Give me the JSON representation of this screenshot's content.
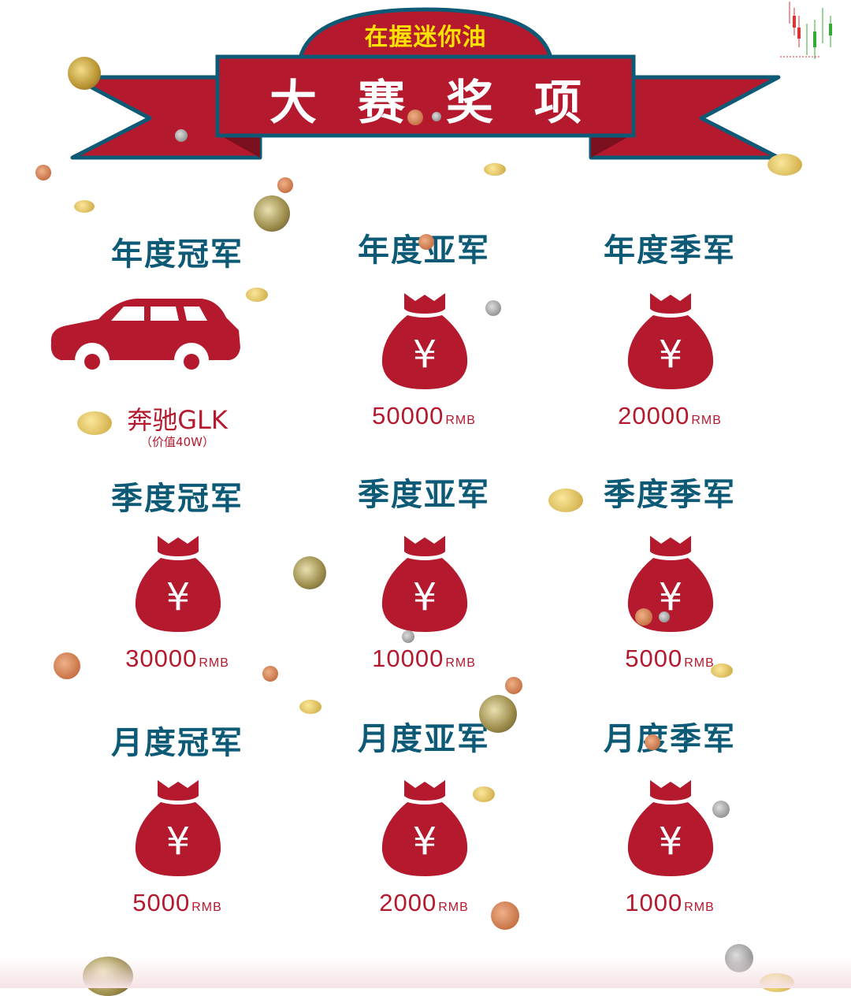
{
  "banner": {
    "subtitle": "在握迷你油",
    "title": "大赛奖项",
    "colors": {
      "ribbon": "#b5192d",
      "border": "#0d5a76",
      "subtitle": "#ffe100"
    }
  },
  "prizes": {
    "annual_champion": {
      "title": "年度冠军",
      "icon": "car-icon",
      "name": "奔驰GLK",
      "value_note": "（价值40W）"
    },
    "annual_second": {
      "title": "年度亚军",
      "icon": "money-bag-icon",
      "amount": "50000",
      "unit": "RMB"
    },
    "annual_third": {
      "title": "年度季军",
      "icon": "money-bag-icon",
      "amount": "20000",
      "unit": "RMB"
    },
    "quarter_champion": {
      "title": "季度冠军",
      "icon": "money-bag-icon",
      "amount": "30000",
      "unit": "RMB"
    },
    "quarter_second": {
      "title": "季度亚军",
      "icon": "money-bag-icon",
      "amount": "10000",
      "unit": "RMB"
    },
    "quarter_third": {
      "title": "季度季军",
      "icon": "money-bag-icon",
      "amount": "5000",
      "unit": "RMB"
    },
    "monthly_champion": {
      "title": "月度冠军",
      "icon": "money-bag-icon",
      "amount": "5000",
      "unit": "RMB"
    },
    "monthly_second": {
      "title": "月度亚军",
      "icon": "money-bag-icon",
      "amount": "2000",
      "unit": "RMB"
    },
    "monthly_third": {
      "title": "月度季军",
      "icon": "money-bag-icon",
      "amount": "1000",
      "unit": "RMB"
    }
  },
  "colors": {
    "prize_title": "#0d5a76",
    "prize_red": "#b5192d"
  }
}
